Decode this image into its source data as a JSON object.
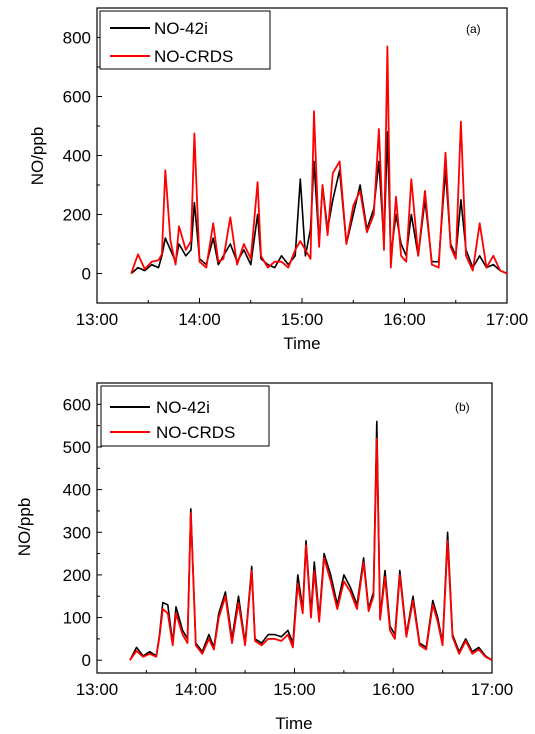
{
  "chart_data": [
    {
      "type": "line",
      "panel_label": "(a)",
      "xlabel": "Time",
      "ylabel": "NO/ppb",
      "xlim": [
        "13:00",
        "17:00"
      ],
      "ylim": [
        -100,
        900
      ],
      "x_ticks": [
        "13:00",
        "14:00",
        "15:00",
        "16:00",
        "17:00"
      ],
      "y_ticks": [
        0,
        200,
        400,
        600,
        800
      ],
      "legend": "top-left",
      "grid": false,
      "x": [
        "13:20",
        "13:24",
        "13:28",
        "13:32",
        "13:36",
        "13:38",
        "13:40",
        "13:43",
        "13:46",
        "13:48",
        "13:52",
        "13:55",
        "13:57",
        "14:00",
        "14:04",
        "14:08",
        "14:11",
        "14:14",
        "14:18",
        "14:22",
        "14:26",
        "14:30",
        "14:34",
        "14:36",
        "14:40",
        "14:44",
        "14:48",
        "14:52",
        "14:56",
        "14:59",
        "15:02",
        "15:05",
        "15:07",
        "15:10",
        "15:12",
        "15:15",
        "15:18",
        "15:22",
        "15:26",
        "15:30",
        "15:34",
        "15:38",
        "15:42",
        "15:45",
        "15:48",
        "15:50",
        "15:52",
        "15:55",
        "15:58",
        "16:01",
        "16:04",
        "16:08",
        "16:12",
        "16:16",
        "16:20",
        "16:24",
        "16:27",
        "16:30",
        "16:33",
        "16:36",
        "16:40",
        "16:44",
        "16:48",
        "16:52",
        "16:56",
        "17:00"
      ],
      "series": [
        {
          "name": "NO-42i",
          "color": "#000000",
          "values": [
            0,
            20,
            10,
            30,
            20,
            60,
            120,
            80,
            40,
            100,
            60,
            80,
            240,
            50,
            30,
            120,
            30,
            60,
            100,
            40,
            80,
            30,
            200,
            50,
            30,
            20,
            60,
            30,
            60,
            320,
            60,
            150,
            380,
            100,
            300,
            150,
            250,
            350,
            100,
            200,
            300,
            150,
            220,
            380,
            100,
            480,
            60,
            200,
            100,
            60,
            200,
            60,
            250,
            40,
            40,
            350,
            100,
            60,
            250,
            80,
            20,
            60,
            20,
            30,
            10,
            0
          ]
        },
        {
          "name": "NO-CRDS",
          "color": "#ff0000",
          "values": [
            0,
            65,
            15,
            40,
            45,
            65,
            350,
            110,
            30,
            160,
            80,
            110,
            475,
            40,
            20,
            170,
            40,
            50,
            190,
            30,
            100,
            50,
            310,
            60,
            20,
            40,
            40,
            20,
            80,
            110,
            80,
            50,
            550,
            90,
            300,
            130,
            340,
            380,
            100,
            230,
            280,
            140,
            200,
            490,
            80,
            770,
            20,
            260,
            60,
            40,
            320,
            60,
            280,
            30,
            20,
            410,
            90,
            50,
            515,
            60,
            10,
            170,
            20,
            60,
            10,
            0
          ]
        }
      ]
    },
    {
      "type": "line",
      "panel_label": "(b)",
      "xlabel": "Time",
      "ylabel": "NO/ppb",
      "xlim": [
        "13:00",
        "17:00"
      ],
      "ylim": [
        -30,
        650
      ],
      "x_ticks": [
        "13:00",
        "14:00",
        "15:00",
        "16:00",
        "17:00"
      ],
      "y_ticks": [
        0,
        100,
        200,
        300,
        400,
        500,
        600
      ],
      "legend": "top-left",
      "grid": false,
      "x": [
        "13:20",
        "13:24",
        "13:28",
        "13:32",
        "13:36",
        "13:38",
        "13:40",
        "13:43",
        "13:46",
        "13:48",
        "13:52",
        "13:55",
        "13:57",
        "14:00",
        "14:04",
        "14:08",
        "14:11",
        "14:14",
        "14:18",
        "14:22",
        "14:26",
        "14:30",
        "14:34",
        "14:36",
        "14:40",
        "14:44",
        "14:48",
        "14:52",
        "14:56",
        "14:59",
        "15:02",
        "15:05",
        "15:07",
        "15:10",
        "15:12",
        "15:15",
        "15:18",
        "15:22",
        "15:26",
        "15:30",
        "15:34",
        "15:38",
        "15:42",
        "15:45",
        "15:48",
        "15:50",
        "15:52",
        "15:55",
        "15:58",
        "16:01",
        "16:04",
        "16:08",
        "16:12",
        "16:16",
        "16:20",
        "16:24",
        "16:27",
        "16:30",
        "16:33",
        "16:36",
        "16:40",
        "16:44",
        "16:48",
        "16:52",
        "16:56",
        "17:00"
      ],
      "series": [
        {
          "name": "NO-42i",
          "color": "#000000",
          "values": [
            0,
            30,
            10,
            20,
            10,
            60,
            135,
            130,
            40,
            125,
            70,
            50,
            355,
            40,
            20,
            60,
            30,
            110,
            160,
            50,
            150,
            40,
            220,
            50,
            40,
            60,
            60,
            55,
            70,
            40,
            200,
            120,
            280,
            110,
            230,
            100,
            250,
            200,
            130,
            200,
            170,
            130,
            240,
            120,
            160,
            560,
            100,
            210,
            80,
            60,
            210,
            60,
            150,
            40,
            30,
            140,
            100,
            40,
            300,
            60,
            20,
            50,
            20,
            30,
            10,
            0
          ]
        },
        {
          "name": "NO-CRDS",
          "color": "#ff0000",
          "values": [
            0,
            22,
            8,
            15,
            8,
            55,
            120,
            110,
            35,
            110,
            60,
            40,
            345,
            35,
            15,
            50,
            25,
            100,
            150,
            40,
            135,
            35,
            210,
            45,
            35,
            50,
            50,
            45,
            60,
            30,
            180,
            110,
            270,
            100,
            210,
            90,
            240,
            185,
            120,
            185,
            160,
            120,
            230,
            115,
            150,
            520,
            95,
            195,
            70,
            50,
            200,
            55,
            140,
            35,
            25,
            130,
            90,
            35,
            280,
            55,
            15,
            45,
            15,
            25,
            8,
            0
          ]
        }
      ]
    }
  ]
}
